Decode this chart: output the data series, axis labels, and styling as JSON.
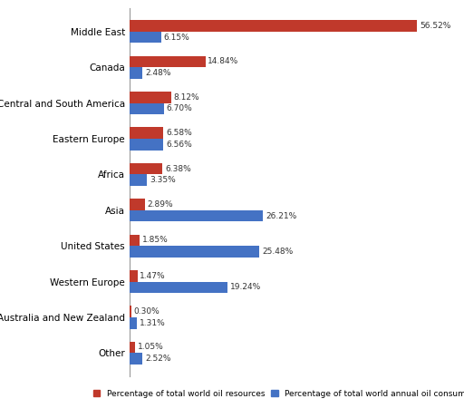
{
  "categories": [
    "Middle East",
    "Canada",
    "Central and South America",
    "Eastern Europe",
    "Africa",
    "Asia",
    "United States",
    "Western Europe",
    "Australia and New Zealand",
    "Other"
  ],
  "oil_resources": [
    56.52,
    14.84,
    8.12,
    6.58,
    6.38,
    2.89,
    1.85,
    1.47,
    0.3,
    1.05
  ],
  "oil_consumption": [
    6.15,
    2.48,
    6.7,
    6.56,
    3.35,
    26.21,
    25.48,
    19.24,
    1.31,
    2.52
  ],
  "resource_color": "#C0392B",
  "consumption_color": "#4472C4",
  "bar_height": 0.32,
  "legend_resource": "Percentage of total world oil resources",
  "legend_consumption": "Percentage of total world annual oil consumption",
  "xlim": [
    0,
    63
  ],
  "label_fontsize": 6.5,
  "tick_fontsize": 7.5,
  "legend_fontsize": 6.5,
  "figsize": [
    5.12,
    4.61
  ],
  "dpi": 100,
  "background_color": "#ffffff"
}
